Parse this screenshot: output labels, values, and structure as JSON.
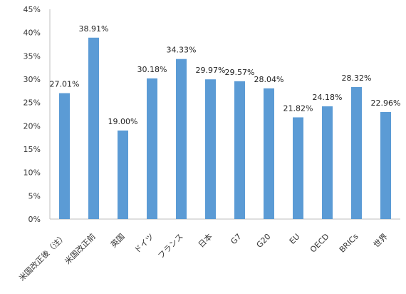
{
  "chart_data": {
    "type": "bar",
    "title": "",
    "xlabel": "",
    "ylabel": "",
    "ylim": [
      0,
      45
    ],
    "ytick_step": 5,
    "ytick_labels": [
      "0%",
      "5%",
      "10%",
      "15%",
      "20%",
      "25%",
      "30%",
      "35%",
      "40%",
      "45%"
    ],
    "grid": false,
    "legend": "none",
    "bar_color": "#5b9bd5",
    "categories": [
      "米国改正後（注）",
      "米国改正前",
      "英国",
      "ドイツ",
      "フランス",
      "日本",
      "G7",
      "G20",
      "EU",
      "OECD",
      "BRICs",
      "世界"
    ],
    "values": [
      27.01,
      38.91,
      19.0,
      30.18,
      34.33,
      29.97,
      29.57,
      28.04,
      21.82,
      24.18,
      28.32,
      22.96
    ],
    "data_labels": [
      "27.01%",
      "38.91%",
      "19.00%",
      "30.18%",
      "34.33%",
      "29.97%",
      "29.57%",
      "28.04%",
      "21.82%",
      "24.18%",
      "28.32%",
      "22.96%"
    ]
  }
}
